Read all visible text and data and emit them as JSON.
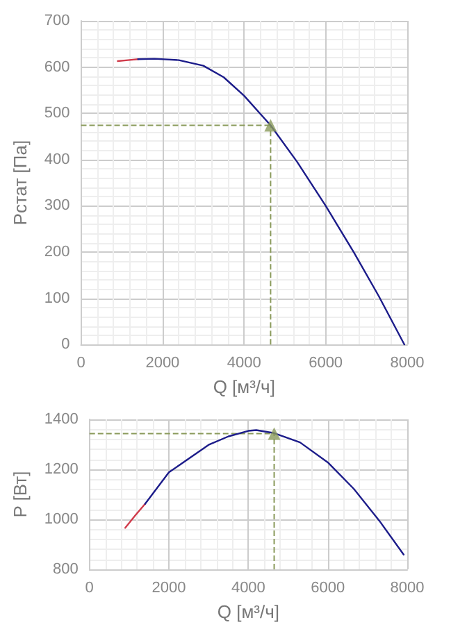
{
  "chart_data": [
    {
      "type": "line",
      "xlabel": "Q [м³/ч]",
      "ylabel": "Pстат [Па]",
      "xlim": [
        0,
        8000
      ],
      "xticks": [
        0,
        2000,
        4000,
        6000,
        8000
      ],
      "ylim": [
        0,
        700
      ],
      "yticks": [
        0,
        100,
        200,
        300,
        400,
        500,
        600,
        700
      ],
      "grid": true,
      "line_style": "solid",
      "series": [
        {
          "color": "#d03a4a",
          "marker": "none",
          "x": [
            900,
            1150,
            1400
          ],
          "values": [
            613,
            615,
            617
          ]
        },
        {
          "color": "#1c1c8a",
          "marker": "none",
          "x": [
            1400,
            1800,
            2400,
            3000,
            3500,
            4000,
            4650,
            5300,
            6000,
            6700,
            7300,
            7930
          ],
          "values": [
            617,
            618,
            615,
            603,
            578,
            538,
            474,
            395,
            300,
            198,
            105,
            0
          ]
        },
        {
          "type": "scatter",
          "color": "#8a9a5b",
          "marker": "triangle",
          "x": [
            4650
          ],
          "values": [
            474
          ]
        }
      ],
      "ref_lines": [
        {
          "axis": "x",
          "value": 4650,
          "color": "#8a9a5b",
          "line_style": "dashed"
        },
        {
          "axis": "y",
          "value": 474,
          "color": "#8a9a5b",
          "line_style": "dashed"
        }
      ]
    },
    {
      "type": "line",
      "xlabel": "Q [м³/ч]",
      "ylabel": "P [Вт]",
      "xlim": [
        0,
        8000
      ],
      "xticks": [
        0,
        2000,
        4000,
        6000,
        8000
      ],
      "ylim": [
        800,
        1400
      ],
      "yticks": [
        800,
        1000,
        1200,
        1400
      ],
      "grid": true,
      "line_style": "solid",
      "series": [
        {
          "color": "#d03a4a",
          "marker": "none",
          "x": [
            900,
            1150,
            1400
          ],
          "values": [
            966,
            1015,
            1062
          ]
        },
        {
          "color": "#1c1c8a",
          "marker": "none",
          "x": [
            1400,
            2000,
            3000,
            3500,
            4000,
            4200,
            4650,
            5300,
            6000,
            6650,
            7300,
            7910
          ],
          "values": [
            1062,
            1188,
            1298,
            1332,
            1354,
            1357,
            1345,
            1308,
            1228,
            1123,
            994,
            859
          ]
        },
        {
          "type": "scatter",
          "color": "#8a9a5b",
          "marker": "triangle",
          "x": [
            4650
          ],
          "values": [
            1343
          ]
        }
      ],
      "ref_lines": [
        {
          "axis": "x",
          "value": 4650,
          "color": "#8a9a5b",
          "line_style": "dashed"
        },
        {
          "axis": "y",
          "value": 1343,
          "color": "#8a9a5b",
          "line_style": "dashed"
        }
      ]
    }
  ]
}
